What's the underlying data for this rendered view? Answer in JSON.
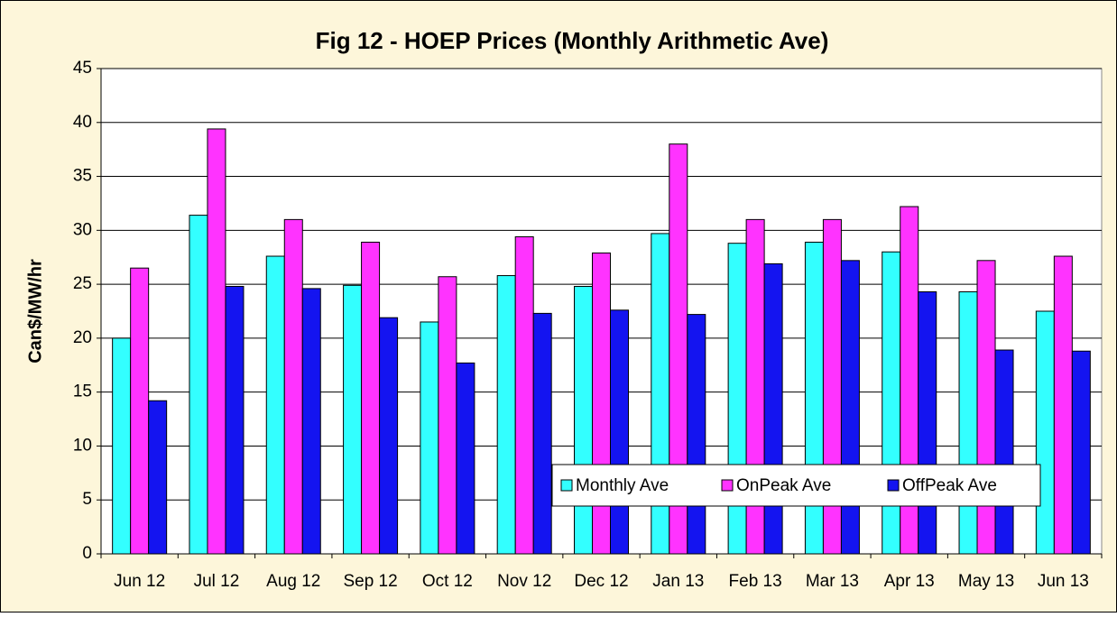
{
  "chart_data": {
    "type": "bar",
    "title": "Fig 12 - HOEP Prices (Monthly Arithmetic Ave)",
    "y_label": "Can$/MW/hr",
    "categories": [
      "Jun 12",
      "Jul 12",
      "Aug 12",
      "Sep 12",
      "Oct 12",
      "Nov 12",
      "Dec 12",
      "Jan 13",
      "Feb 13",
      "Mar 13",
      "Apr 13",
      "May 13",
      "Jun 13"
    ],
    "series": [
      {
        "name": "Monthly Ave",
        "color": "#33ffff",
        "values": [
          20.0,
          31.4,
          27.6,
          24.9,
          21.5,
          25.8,
          24.8,
          29.7,
          28.8,
          28.9,
          28.0,
          24.3,
          22.5
        ]
      },
      {
        "name": "OnPeak Ave",
        "color": "#ff33ff",
        "values": [
          26.5,
          39.4,
          31.0,
          28.9,
          25.7,
          29.4,
          27.9,
          38.0,
          31.0,
          31.0,
          32.2,
          27.2,
          27.6
        ]
      },
      {
        "name": "OffPeak Ave",
        "color": "#1414f0",
        "values": [
          14.2,
          24.8,
          24.6,
          21.9,
          17.7,
          22.3,
          22.6,
          22.2,
          26.9,
          27.2,
          24.3,
          18.9,
          18.8
        ]
      }
    ],
    "ylim": [
      0,
      45
    ],
    "yticks": [
      0,
      5,
      10,
      15,
      20,
      25,
      30,
      35,
      40,
      45
    ],
    "grid": true,
    "legend": "bottom-right"
  }
}
